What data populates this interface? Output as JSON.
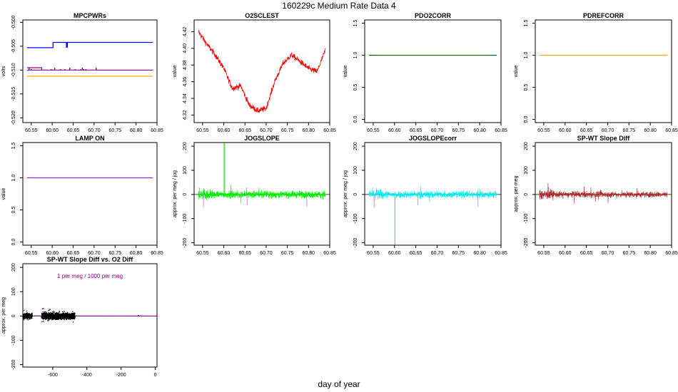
{
  "title": "160229c   Medium Rate Data 4",
  "xlabel": "day of year",
  "chart_data": [
    {
      "id": "mpcpwrs",
      "type": "line",
      "title": "MPCPWRs",
      "ylabel": "volts",
      "xlim": [
        60.53,
        60.85
      ],
      "ylim": [
        -0.521,
        -0.4995
      ],
      "xticks": [
        60.55,
        60.6,
        60.65,
        60.7,
        60.75,
        60.8,
        60.85
      ],
      "xtick_labels": [
        "60.55",
        "60.60",
        "60.65",
        "60.70",
        "60.75",
        "60.80",
        "60.85"
      ],
      "yticks": [
        -0.52,
        -0.515,
        -0.51,
        -0.505,
        -0.5
      ],
      "ytick_labels": [
        "-0.520",
        "-0.515",
        "-0.510",
        "-0.505",
        "-0.500"
      ],
      "series": [
        {
          "color": "#0000ff",
          "x": [
            60.54,
            60.6,
            60.602,
            60.602,
            60.615,
            60.618,
            60.618,
            60.84
          ],
          "y": [
            -0.5053,
            -0.5053,
            -0.5053,
            -0.5042,
            -0.5042,
            -0.5042,
            -0.5042,
            -0.5042
          ]
        },
        {
          "color": "#8b008b",
          "x": [
            60.54,
            60.84
          ],
          "y": [
            -0.51,
            -0.51
          ]
        },
        {
          "color": "#ffa500",
          "x": [
            60.54,
            60.84
          ],
          "y": [
            -0.5113,
            -0.5113
          ]
        }
      ]
    },
    {
      "id": "o2sclest",
      "type": "line",
      "title": "O2SCLEST",
      "ylabel": "value",
      "xlim": [
        60.53,
        60.85
      ],
      "ylim": [
        4.311,
        4.434
      ],
      "xticks": [
        60.55,
        60.6,
        60.65,
        60.7,
        60.75,
        60.8,
        60.85
      ],
      "xtick_labels": [
        "60.55",
        "60.60",
        "60.65",
        "60.70",
        "60.75",
        "60.80",
        "60.85"
      ],
      "yticks": [
        4.32,
        4.34,
        4.36,
        4.38,
        4.4,
        4.42
      ],
      "ytick_labels": [
        "4.32",
        "4.34",
        "4.36",
        "4.38",
        "4.40",
        "4.42"
      ],
      "series": [
        {
          "color": "#ff0000",
          "x": [
            60.54,
            60.56,
            60.58,
            60.6,
            60.62,
            60.64,
            60.66,
            60.68,
            60.7,
            60.72,
            60.74,
            60.76,
            60.78,
            60.8,
            60.82,
            60.84
          ],
          "y": [
            4.42,
            4.405,
            4.392,
            4.376,
            4.352,
            4.355,
            4.332,
            4.325,
            4.328,
            4.36,
            4.382,
            4.392,
            4.384,
            4.376,
            4.372,
            4.398
          ]
        }
      ]
    },
    {
      "id": "pdo2corr",
      "type": "line",
      "title": "PDO2CORR",
      "ylabel": "value",
      "xlim": [
        60.53,
        60.85
      ],
      "ylim": [
        -0.05,
        1.55
      ],
      "xticks": [
        60.55,
        60.6,
        60.65,
        60.7,
        60.75,
        60.8,
        60.85
      ],
      "xtick_labels": [
        "60.55",
        "60.60",
        "60.65",
        "60.70",
        "60.75",
        "60.80",
        "60.85"
      ],
      "yticks": [
        0.0,
        0.5,
        1.0,
        1.5
      ],
      "ytick_labels": [
        "0.0",
        "0.5",
        "1.0",
        "1.5"
      ],
      "series": [
        {
          "color": "#006400",
          "x": [
            60.54,
            60.84
          ],
          "y": [
            1.0,
            1.0
          ]
        }
      ]
    },
    {
      "id": "pdrefcorr",
      "type": "line",
      "title": "PDREFCORR",
      "ylabel": "value",
      "xlim": [
        60.53,
        60.85
      ],
      "ylim": [
        -0.05,
        1.55
      ],
      "xticks": [
        60.55,
        60.6,
        60.65,
        60.7,
        60.75,
        60.8,
        60.85
      ],
      "xtick_labels": [
        "60.55",
        "60.60",
        "60.65",
        "60.70",
        "60.75",
        "60.80",
        "60.85"
      ],
      "yticks": [
        0.0,
        0.5,
        1.0,
        1.5
      ],
      "ytick_labels": [
        "0.0",
        "0.5",
        "1.0",
        "1.5"
      ],
      "series": [
        {
          "color": "#ffa500",
          "x": [
            60.54,
            60.84
          ],
          "y": [
            1.0,
            1.0
          ]
        }
      ]
    },
    {
      "id": "lampon",
      "type": "line",
      "title": "LAMP ON",
      "ylabel": "value",
      "xlim": [
        60.53,
        60.85
      ],
      "ylim": [
        -0.05,
        1.55
      ],
      "xticks": [
        60.55,
        60.6,
        60.65,
        60.7,
        60.75,
        60.8,
        60.85
      ],
      "xtick_labels": [
        "60.55",
        "60.60",
        "60.65",
        "60.70",
        "60.75",
        "60.80",
        "60.85"
      ],
      "yticks": [
        0.0,
        0.5,
        1.0,
        1.5
      ],
      "ytick_labels": [
        "0.0",
        "0.5",
        "1.0",
        "1.5"
      ],
      "series": [
        {
          "color": "#a020f0",
          "x": [
            60.54,
            60.84
          ],
          "y": [
            1.0,
            1.0
          ]
        }
      ]
    },
    {
      "id": "jogslope",
      "type": "line",
      "title": "JOGSLOPE",
      "ylabel": "approx. per meg / jog",
      "xlim": [
        60.53,
        60.85
      ],
      "ylim": [
        -210,
        215
      ],
      "xticks": [
        60.55,
        60.6,
        60.65,
        60.7,
        60.75,
        60.8,
        60.85
      ],
      "xtick_labels": [
        "60.55",
        "60.60",
        "60.65",
        "60.70",
        "60.75",
        "60.80",
        "60.85"
      ],
      "yticks": [
        -200,
        -100,
        0,
        100,
        200
      ],
      "ytick_labels": [
        "-200",
        "-100",
        "0",
        "100",
        "200"
      ],
      "hline": 0,
      "series": [
        {
          "color": "#00ee00",
          "noise": 25,
          "spike_x": 60.601,
          "spike_y": 215
        }
      ]
    },
    {
      "id": "jogslopecorr",
      "type": "line",
      "title": "JOGSLOPEcorr",
      "ylabel": "approx. per meg / jog",
      "xlim": [
        60.53,
        60.85
      ],
      "ylim": [
        -210,
        215
      ],
      "xticks": [
        60.55,
        60.6,
        60.65,
        60.7,
        60.75,
        60.8,
        60.85
      ],
      "xtick_labels": [
        "60.55",
        "60.60",
        "60.65",
        "60.70",
        "60.75",
        "60.80",
        "60.85"
      ],
      "yticks": [
        -200,
        -100,
        0,
        100,
        200
      ],
      "ytick_labels": [
        "-200",
        "-100",
        "0",
        "100",
        "200"
      ],
      "hline": 0,
      "series": [
        {
          "color": "#00eeee",
          "noise": 25,
          "spike_x": 60.601,
          "spike_y": -210
        }
      ]
    },
    {
      "id": "spwtslopediff",
      "type": "line",
      "title": "SP-WT Slope Diff",
      "ylabel": "approx. per meg",
      "xlim": [
        60.53,
        60.85
      ],
      "ylim": [
        -210,
        215
      ],
      "xticks": [
        60.55,
        60.6,
        60.65,
        60.7,
        60.75,
        60.8,
        60.85
      ],
      "xtick_labels": [
        "60.55",
        "60.60",
        "60.65",
        "60.70",
        "60.75",
        "60.80",
        "60.85"
      ],
      "yticks": [
        -200,
        -100,
        0,
        100,
        200
      ],
      "ytick_labels": [
        "-200",
        "-100",
        "0",
        "100",
        "200"
      ],
      "hline": 0,
      "series": [
        {
          "color": "#a52a2a",
          "noise": 22
        }
      ]
    },
    {
      "id": "spwtvso2",
      "type": "scatter",
      "title": "SP-WT Slope Diff vs. O2 Diff",
      "ylabel": "approx. per meg",
      "annotation": "1 per meg / 1000 per meg",
      "annotation_color": "#8b008b",
      "xlim": [
        -775,
        10
      ],
      "ylim": [
        -210,
        215
      ],
      "xticks": [
        -600,
        -400,
        -200,
        0
      ],
      "xtick_labels": [
        "-600",
        "-400",
        "-200",
        "0"
      ],
      "yticks": [
        -200,
        -100,
        0,
        100,
        200
      ],
      "ytick_labels": [
        "-200",
        "-100",
        "0",
        "100",
        "200"
      ],
      "hline": 0,
      "slope_line": {
        "color": "#8b008b",
        "x": [
          -775,
          10
        ],
        "y": [
          0.775,
          -0.01
        ]
      },
      "clusters": [
        {
          "xmin": -775,
          "xmax": -720,
          "spread": 18
        },
        {
          "xmin": -665,
          "xmax": -470,
          "spread": 22
        }
      ],
      "outliers": [
        {
          "x": -100,
          "y": 2
        }
      ]
    }
  ]
}
